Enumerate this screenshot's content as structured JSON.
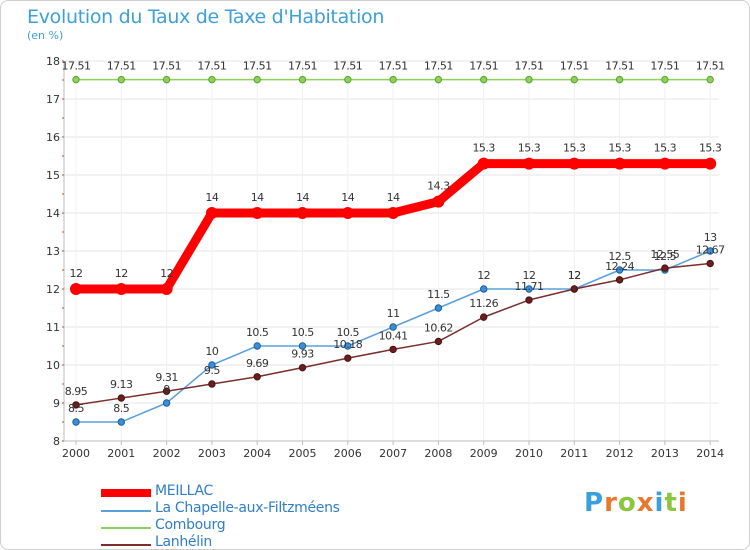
{
  "title": "Evolution du Taux de Taxe d'Habitation",
  "subtitle": "(en %)",
  "brand": {
    "text": "Proxiti",
    "letters": [
      "P",
      "r",
      "o",
      "x",
      "i",
      "t",
      "i"
    ],
    "colors": [
      "#3aa0dc",
      "#e7792d",
      "#8cc63e",
      "#e7792d",
      "#3aa0dc",
      "#8cc63e",
      "#e7792d"
    ]
  },
  "chart_data": {
    "type": "line",
    "title": "Evolution du Taux de Taxe d'Habitation",
    "ylabel": "(en %)",
    "xlabel": "",
    "x": [
      "2000",
      "2001",
      "2002",
      "2003",
      "2004",
      "2005",
      "2006",
      "2007",
      "2008",
      "2009",
      "2010",
      "2011",
      "2012",
      "2013",
      "2014"
    ],
    "ylim": [
      8,
      18
    ],
    "yticks": [
      "8",
      "9",
      "10",
      "11",
      "12",
      "13",
      "14",
      "15",
      "16",
      "17",
      "18"
    ],
    "grid": true,
    "legend_position": "bottom-left",
    "series": [
      {
        "name": "MEILLAC",
        "color": "#ff0000",
        "values": [
          12,
          12,
          12,
          14,
          14,
          14,
          14,
          14,
          14.3,
          15.3,
          15.3,
          15.3,
          15.3,
          15.3,
          15.3
        ],
        "labels": [
          "12",
          "12",
          "12",
          "14",
          "14",
          "14",
          "14",
          "14",
          "14.3",
          "15.3",
          "15.3",
          "15.3",
          "15.3",
          "15.3",
          "15.3"
        ]
      },
      {
        "name": "La Chapelle-aux-Filtzméens",
        "color": "#5aa0db",
        "values": [
          8.5,
          8.5,
          9,
          10,
          10.5,
          10.5,
          10.5,
          11,
          11.5,
          12,
          12,
          12,
          12.5,
          12.5,
          13
        ],
        "labels": [
          "8.5",
          "8.5",
          "9",
          "10",
          "10.5",
          "10.5",
          "10.5",
          "11",
          "11.5",
          "12",
          "12",
          "12",
          "12.5",
          "12.5",
          "13"
        ]
      },
      {
        "name": "Combourg",
        "color": "#8cd25a",
        "values": [
          17.51,
          17.51,
          17.51,
          17.51,
          17.51,
          17.51,
          17.51,
          17.51,
          17.51,
          17.51,
          17.51,
          17.51,
          17.51,
          17.51,
          17.51
        ],
        "labels": [
          "17.51",
          "17.51",
          "17.51",
          "17.51",
          "17.51",
          "17.51",
          "17.51",
          "17.51",
          "17.51",
          "17.51",
          "17.51",
          "17.51",
          "17.51",
          "17.51",
          "17.51"
        ]
      },
      {
        "name": "Lanhélin",
        "color": "#7a2e2e",
        "values": [
          8.95,
          9.13,
          9.31,
          9.5,
          9.69,
          9.93,
          10.18,
          10.41,
          10.62,
          11.26,
          11.71,
          12,
          12.24,
          12.55,
          12.67
        ],
        "labels": [
          "8.95",
          "9.13",
          "9.31",
          "9.5",
          "9.69",
          "9.93",
          "10.18",
          "10.41",
          "10.62",
          "11.26",
          "11.71",
          "12",
          "12.24",
          "12.55",
          "12.67"
        ]
      }
    ]
  }
}
